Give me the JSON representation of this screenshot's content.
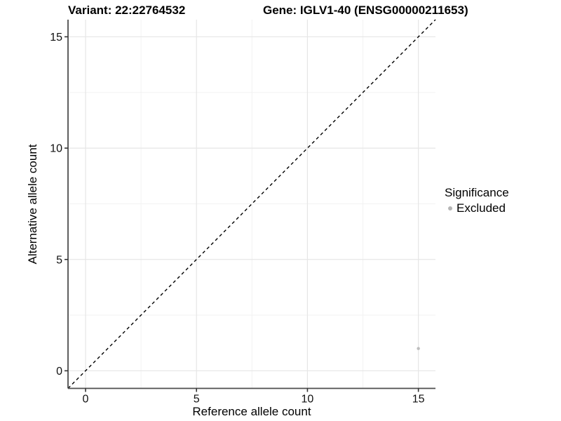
{
  "colors": {
    "point": "#bdbdbd",
    "grid_major": "#e6e6e6",
    "grid_minor": "#f2f2f2",
    "axis": "#4d4d4d",
    "tick": "#333333",
    "identity_line": "#000000",
    "text": "#000000"
  },
  "chart_data": {
    "type": "scatter",
    "title_left": "Variant: 22:22764532",
    "title_right": "Gene: IGLV1-40 (ENSG00000211653)",
    "xlabel": "Reference allele count",
    "ylabel": "Alternative allele count",
    "xlim": [
      -0.79,
      15.77
    ],
    "ylim": [
      -0.79,
      15.77
    ],
    "x_ticks": [
      0,
      5,
      10,
      15
    ],
    "y_ticks": [
      0,
      5,
      10,
      15
    ],
    "minor_ticks": [
      2.5,
      7.5,
      12.5
    ],
    "grid": true,
    "abline": {
      "slope": 1,
      "intercept": 0,
      "style": "dashed"
    },
    "points": [
      {
        "x": 15,
        "y": 1,
        "series": "Excluded"
      }
    ],
    "legend": {
      "title": "Significance",
      "position": "right",
      "items": [
        {
          "label": "Excluded",
          "color": "#b5b5b5"
        }
      ]
    }
  }
}
